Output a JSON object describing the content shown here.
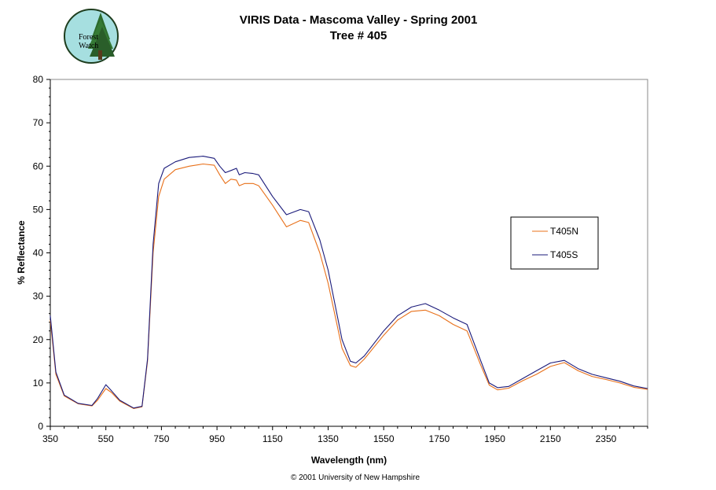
{
  "logo": {
    "line1": "Forest",
    "line2": "Watch"
  },
  "chart_data": {
    "type": "line",
    "title": "VIRIS Data - Mascoma Valley - Spring 2001",
    "subtitle": "Tree # 405",
    "xlabel": "Wavelength (nm)",
    "ylabel": "% Reflectance",
    "xlim": [
      350,
      2500
    ],
    "ylim": [
      0,
      80
    ],
    "xticks": [
      350,
      550,
      750,
      950,
      1150,
      1350,
      1550,
      1750,
      1950,
      2150,
      2350
    ],
    "yticks": [
      0,
      10,
      20,
      30,
      40,
      50,
      60,
      70,
      80
    ],
    "grid": false,
    "legend_position": "right",
    "footer": "© 2001 University of New Hampshire",
    "series": [
      {
        "name": "T405N",
        "color": "#e8701a",
        "x": [
          350,
          370,
          400,
          450,
          500,
          520,
          550,
          570,
          600,
          650,
          680,
          700,
          720,
          740,
          760,
          800,
          850,
          900,
          940,
          960,
          980,
          1000,
          1020,
          1030,
          1050,
          1080,
          1100,
          1150,
          1200,
          1250,
          1280,
          1320,
          1350,
          1400,
          1430,
          1450,
          1480,
          1550,
          1600,
          1650,
          1700,
          1750,
          1800,
          1850,
          1900,
          1930,
          1960,
          2000,
          2050,
          2100,
          2150,
          2200,
          2250,
          2300,
          2350,
          2400,
          2450,
          2500
        ],
        "values": [
          24.5,
          12,
          7,
          5.2,
          4.7,
          6,
          8.7,
          7.8,
          5.8,
          4.1,
          4.5,
          15,
          40,
          53,
          57,
          59.2,
          60,
          60.5,
          60.2,
          58,
          56,
          57,
          56.8,
          55.5,
          56,
          56,
          55.5,
          51,
          46,
          47.5,
          47,
          40,
          33,
          18,
          14,
          13.6,
          15.5,
          21,
          24.5,
          26.5,
          26.8,
          25.5,
          23.5,
          22,
          14,
          9.5,
          8.4,
          8.8,
          10.5,
          12,
          13.8,
          14.7,
          12.8,
          11.5,
          10.8,
          10,
          9,
          8.5
        ]
      },
      {
        "name": "T405S",
        "color": "#1a1a7a",
        "x": [
          350,
          370,
          400,
          450,
          500,
          520,
          550,
          570,
          600,
          650,
          680,
          700,
          720,
          740,
          760,
          800,
          850,
          900,
          940,
          960,
          980,
          1000,
          1020,
          1030,
          1050,
          1080,
          1100,
          1150,
          1200,
          1250,
          1280,
          1320,
          1350,
          1400,
          1430,
          1450,
          1480,
          1550,
          1600,
          1650,
          1700,
          1750,
          1800,
          1850,
          1900,
          1930,
          1960,
          2000,
          2050,
          2100,
          2150,
          2200,
          2250,
          2300,
          2350,
          2400,
          2450,
          2500
        ],
        "values": [
          25.5,
          12.5,
          7.2,
          5.3,
          4.8,
          6.4,
          9.6,
          8.2,
          6,
          4.2,
          4.6,
          15.5,
          42,
          56,
          59.5,
          61,
          62,
          62.3,
          61.8,
          60,
          58.5,
          59,
          59.5,
          58,
          58.5,
          58.3,
          58,
          53,
          48.8,
          50,
          49.5,
          43,
          36,
          20,
          15,
          14.6,
          16.2,
          22,
          25.5,
          27.5,
          28.3,
          26.8,
          25,
          23.5,
          15,
          10,
          8.9,
          9.2,
          11,
          12.8,
          14.6,
          15.2,
          13.3,
          12,
          11.2,
          10.4,
          9.3,
          8.7
        ]
      }
    ]
  }
}
